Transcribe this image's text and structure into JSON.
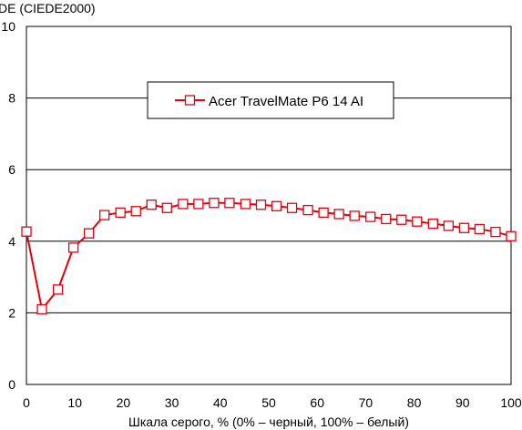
{
  "chart_data": {
    "type": "line",
    "ylabel": "DE (CIEDE2000)",
    "xlabel": "Шкала серого, % (0% – черный, 100% – белый)",
    "xlim": [
      0,
      100
    ],
    "ylim": [
      0,
      10
    ],
    "xticks": [
      "0",
      "10",
      "20",
      "30",
      "40",
      "50",
      "60",
      "70",
      "80",
      "90",
      "100"
    ],
    "yticks": [
      "0",
      "2",
      "4",
      "6",
      "8",
      "10"
    ],
    "grid": "horizontal",
    "legend_position": "upper-center",
    "series": [
      {
        "name": "Acer TravelMate P6 14 AI",
        "color": "#e3000f",
        "marker": "square",
        "x": [
          0,
          3.2,
          6.5,
          9.7,
          12.9,
          16.1,
          19.4,
          22.6,
          25.8,
          29.0,
          32.3,
          35.5,
          38.7,
          41.9,
          45.2,
          48.4,
          51.6,
          54.8,
          58.1,
          61.3,
          64.5,
          67.7,
          71.0,
          74.2,
          77.4,
          80.6,
          83.9,
          87.1,
          90.3,
          93.5,
          96.8,
          100
        ],
        "y": [
          4.27,
          2.1,
          2.65,
          3.82,
          4.22,
          4.73,
          4.8,
          4.84,
          5.02,
          4.93,
          5.04,
          5.04,
          5.07,
          5.07,
          5.04,
          5.02,
          4.98,
          4.93,
          4.87,
          4.8,
          4.76,
          4.71,
          4.68,
          4.62,
          4.6,
          4.55,
          4.49,
          4.43,
          4.37,
          4.34,
          4.26,
          4.14
        ]
      }
    ]
  }
}
